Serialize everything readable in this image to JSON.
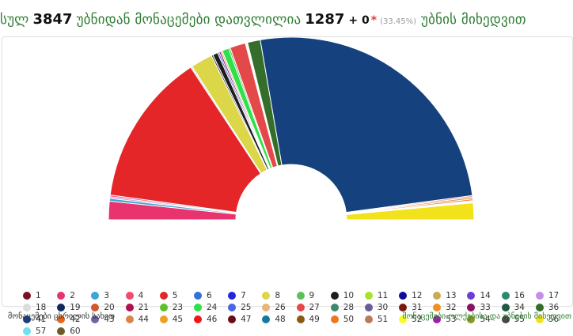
{
  "header": {
    "prefix": "სულ",
    "total_precincts": "3847",
    "middle": "უბნიდან მონაცემები დათვლილია",
    "counted": "1287",
    "plus": "+ 0",
    "star": "*",
    "percent": "(33.45%)",
    "suffix": "უბნის მიხედვით"
  },
  "footer": {
    "left_link": "მონაცემები ცხრილის სახით",
    "right_link": "მონაცემები ოლქებისა და უბნების მიხედვით"
  },
  "chart_data": {
    "type": "pie",
    "subtype": "semi-donut",
    "title": "",
    "legend_position": "bottom",
    "slices": [
      {
        "label": "2",
        "value": 3.3,
        "color": "#e8336e"
      },
      {
        "label": "3",
        "value": 0.5,
        "color": "#3aa7d6"
      },
      {
        "label": "17",
        "value": 0.3,
        "color": "#c58ee6"
      },
      {
        "label": "4",
        "value": 0.3,
        "color": "#f04c6c"
      },
      {
        "label": "5",
        "value": 27.5,
        "color": "#e52629"
      },
      {
        "label": "18",
        "value": 0.3,
        "color": "#dcdcdc"
      },
      {
        "label": "8",
        "value": 3.9,
        "color": "#dcd649"
      },
      {
        "label": "55",
        "value": 0.3,
        "color": "#444444"
      },
      {
        "label": "10",
        "value": 0.9,
        "color": "#1e1e1e"
      },
      {
        "label": "25",
        "value": 0.3,
        "color": "#4b63e6"
      },
      {
        "label": "33",
        "value": 0.3,
        "color": "#8a1060"
      },
      {
        "label": "26",
        "value": 0.3,
        "color": "#e8b47a"
      },
      {
        "label": "24",
        "value": 1.2,
        "color": "#2ee04a"
      },
      {
        "label": "9",
        "value": 0.3,
        "color": "#5cbf5c"
      },
      {
        "label": "27",
        "value": 2.8,
        "color": "#e54848"
      },
      {
        "label": "13",
        "value": 0.4,
        "color": "#ffffff"
      },
      {
        "label": "36",
        "value": 2.3,
        "color": "#356e2a"
      },
      {
        "label": "41",
        "value": 51.9,
        "color": "#15427e"
      },
      {
        "label": "51",
        "value": 0.3,
        "color": "#e8a08a"
      },
      {
        "label": "44",
        "value": 0.3,
        "color": "#d9844a"
      },
      {
        "label": "50",
        "value": 0.3,
        "color": "#f07522"
      },
      {
        "label": "52",
        "value": 0.4,
        "color": "#ffffff"
      },
      {
        "label": "56",
        "value": 3.0,
        "color": "#f2e21b"
      }
    ],
    "legend": [
      {
        "label": "1",
        "color": "#7a1020"
      },
      {
        "label": "2",
        "color": "#e8336e"
      },
      {
        "label": "3",
        "color": "#3aa7d6"
      },
      {
        "label": "4",
        "color": "#f04c6c"
      },
      {
        "label": "5",
        "color": "#e52629"
      },
      {
        "label": "6",
        "color": "#2f74d6"
      },
      {
        "label": "7",
        "color": "#2424e0"
      },
      {
        "label": "8",
        "color": "#dcd649"
      },
      {
        "label": "9",
        "color": "#5cbf5c"
      },
      {
        "label": "10",
        "color": "#1e1e1e"
      },
      {
        "label": "11",
        "color": "#a6e22e"
      },
      {
        "label": "12",
        "color": "#0d0d9a"
      },
      {
        "label": "13",
        "color": "#ccaa55"
      },
      {
        "label": "14",
        "color": "#6a3ed6"
      },
      {
        "label": "16",
        "color": "#2a8a70"
      },
      {
        "label": "17",
        "color": "#c58ee6"
      },
      {
        "label": "18",
        "color": "#dcdcdc"
      },
      {
        "label": "19",
        "color": "#13295e"
      },
      {
        "label": "20",
        "color": "#d4582a"
      },
      {
        "label": "21",
        "color": "#b0104e"
      },
      {
        "label": "23",
        "color": "#5cc228"
      },
      {
        "label": "24",
        "color": "#2ee04a"
      },
      {
        "label": "25",
        "color": "#4b63e6"
      },
      {
        "label": "26",
        "color": "#e8b47a"
      },
      {
        "label": "27",
        "color": "#e54848"
      },
      {
        "label": "28",
        "color": "#3a8a6e"
      },
      {
        "label": "30",
        "color": "#6a5c9a"
      },
      {
        "label": "31",
        "color": "#7a1a10"
      },
      {
        "label": "32",
        "color": "#f09020"
      },
      {
        "label": "33",
        "color": "#8a1060"
      },
      {
        "label": "34",
        "color": "#1e5a44"
      },
      {
        "label": "36",
        "color": "#356e2a"
      },
      {
        "label": "41",
        "color": "#15427e"
      },
      {
        "label": "42",
        "color": "#e8661a"
      },
      {
        "label": "43",
        "color": "#7360a8"
      },
      {
        "label": "44",
        "color": "#d9844a"
      },
      {
        "label": "45",
        "color": "#f0a020"
      },
      {
        "label": "46",
        "color": "#f01616"
      },
      {
        "label": "47",
        "color": "#6e0a12"
      },
      {
        "label": "48",
        "color": "#157a9a"
      },
      {
        "label": "49",
        "color": "#8a5a10"
      },
      {
        "label": "50",
        "color": "#f07522"
      },
      {
        "label": "51",
        "color": "#b87a5a"
      },
      {
        "label": "52",
        "color": "#fafa28"
      },
      {
        "label": "53",
        "color": "#b010b8"
      },
      {
        "label": "54",
        "color": "#8a9a20"
      },
      {
        "label": "55",
        "color": "#444444"
      },
      {
        "label": "56",
        "color": "#f2e21b"
      },
      {
        "label": "57",
        "color": "#6ee0f0"
      },
      {
        "label": "60",
        "color": "#6e5a28"
      }
    ]
  }
}
